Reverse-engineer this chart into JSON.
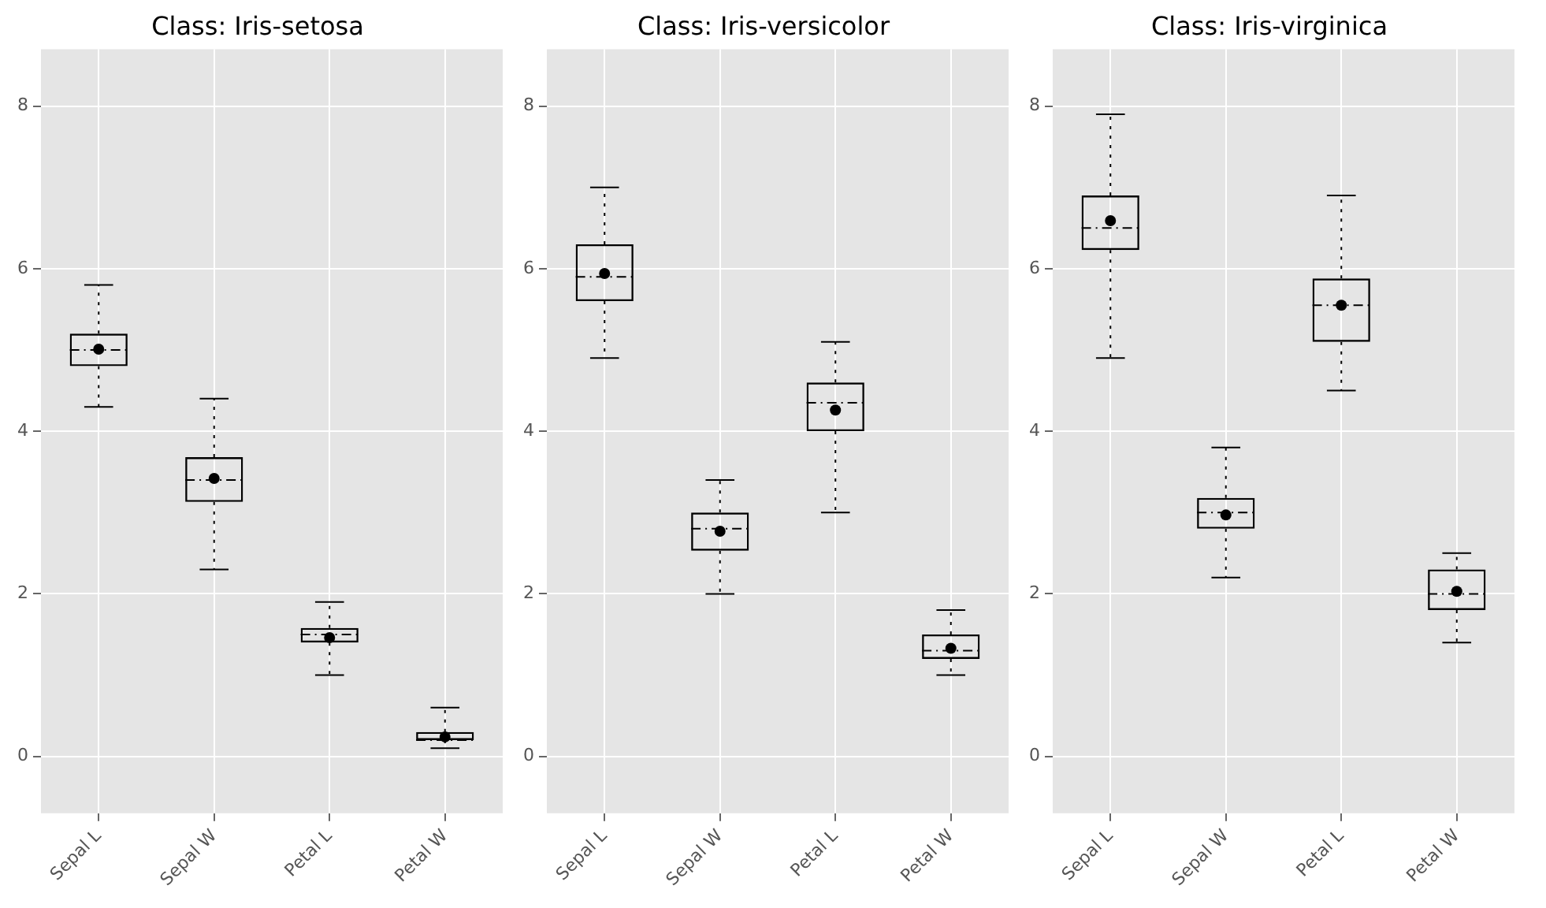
{
  "chart_data": [
    {
      "type": "box",
      "title": "Class: Iris-setosa",
      "categories": [
        "Sepal L",
        "Sepal W",
        "Petal L",
        "Petal W"
      ],
      "boxes": [
        {
          "low": 4.3,
          "q1": 4.8,
          "median": 5.0,
          "q3": 5.2,
          "high": 5.8,
          "mean": 5.01
        },
        {
          "low": 2.3,
          "q1": 3.13,
          "median": 3.4,
          "q3": 3.68,
          "high": 4.4,
          "mean": 3.42
        },
        {
          "low": 1.0,
          "q1": 1.4,
          "median": 1.5,
          "q3": 1.58,
          "high": 1.9,
          "mean": 1.46
        },
        {
          "low": 0.1,
          "q1": 0.2,
          "median": 0.2,
          "q3": 0.3,
          "high": 0.6,
          "mean": 0.24
        }
      ],
      "ylim": [
        -0.7,
        8.7
      ],
      "yticks": [
        0,
        2,
        4,
        6,
        8
      ],
      "grid": true
    },
    {
      "type": "box",
      "title": "Class: Iris-versicolor",
      "categories": [
        "Sepal L",
        "Sepal W",
        "Petal L",
        "Petal W"
      ],
      "boxes": [
        {
          "low": 4.9,
          "q1": 5.6,
          "median": 5.9,
          "q3": 6.3,
          "high": 7.0,
          "mean": 5.94
        },
        {
          "low": 2.0,
          "q1": 2.53,
          "median": 2.8,
          "q3": 3.0,
          "high": 3.4,
          "mean": 2.77
        },
        {
          "low": 3.0,
          "q1": 4.0,
          "median": 4.35,
          "q3": 4.6,
          "high": 5.1,
          "mean": 4.26
        },
        {
          "low": 1.0,
          "q1": 1.2,
          "median": 1.3,
          "q3": 1.5,
          "high": 1.8,
          "mean": 1.33
        }
      ],
      "ylim": [
        -0.7,
        8.7
      ],
      "yticks": [
        0,
        2,
        4,
        6,
        8
      ],
      "grid": true
    },
    {
      "type": "box",
      "title": "Class: Iris-virginica",
      "categories": [
        "Sepal L",
        "Sepal W",
        "Petal L",
        "Petal W"
      ],
      "boxes": [
        {
          "low": 4.9,
          "q1": 6.23,
          "median": 6.5,
          "q3": 6.9,
          "high": 7.9,
          "mean": 6.59
        },
        {
          "low": 2.2,
          "q1": 2.8,
          "median": 3.0,
          "q3": 3.18,
          "high": 3.8,
          "mean": 2.97
        },
        {
          "low": 4.5,
          "q1": 5.1,
          "median": 5.55,
          "q3": 5.88,
          "high": 6.9,
          "mean": 5.55
        },
        {
          "low": 1.4,
          "q1": 1.8,
          "median": 2.0,
          "q3": 2.3,
          "high": 2.5,
          "mean": 2.03
        }
      ],
      "ylim": [
        -0.7,
        8.7
      ],
      "yticks": [
        0,
        2,
        4,
        6,
        8
      ],
      "grid": true
    }
  ]
}
